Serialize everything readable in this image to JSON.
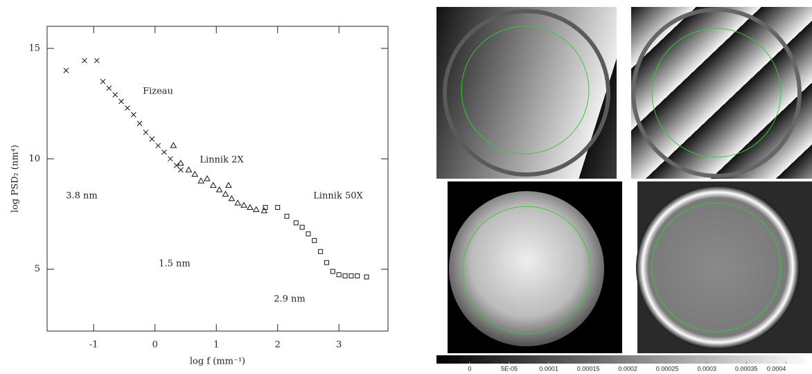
{
  "chart_data": {
    "type": "scatter",
    "xlabel": "log f (mm⁻¹)",
    "ylabel": "log PSD₂ (nm⁴)",
    "xlim": [
      -1.76,
      3.8
    ],
    "ylim": [
      2.2,
      16
    ],
    "xticks": [
      -1,
      0,
      1,
      2,
      3
    ],
    "yticks": [
      5,
      10,
      15
    ],
    "annotations": [
      "Fizeau",
      "Linnik 2X",
      "Linnik 50X",
      "3.8 nm",
      "1.5 nm",
      "2.9 nm"
    ],
    "series": [
      {
        "marker": "x",
        "color": "#111111",
        "x": [
          -1.45,
          -1.15,
          -0.95,
          -0.85,
          -0.75,
          -0.65,
          -0.55,
          -0.45,
          -0.35,
          -0.25,
          -0.15,
          -0.05,
          0.05,
          0.15,
          0.25,
          0.35,
          0.42
        ],
        "values": [
          14.0,
          14.45,
          14.45,
          13.5,
          13.2,
          12.9,
          12.6,
          12.3,
          12.0,
          11.6,
          11.2,
          10.9,
          10.6,
          10.3,
          10.0,
          9.7,
          9.5
        ]
      },
      {
        "marker": "triangle",
        "color": "#111111",
        "x": [
          0.3,
          0.42,
          0.55,
          0.65,
          0.75,
          0.85,
          0.95,
          1.05,
          1.2,
          1.15,
          1.25,
          1.35,
          1.45,
          1.55,
          1.65,
          1.78
        ],
        "values": [
          10.6,
          9.8,
          9.5,
          9.3,
          9.0,
          9.1,
          8.8,
          8.6,
          8.8,
          8.4,
          8.2,
          8.0,
          7.9,
          7.8,
          7.7,
          7.65
        ]
      },
      {
        "marker": "square",
        "color": "#111111",
        "x": [
          1.8,
          2.0,
          2.15,
          2.3,
          2.4,
          2.5,
          2.6,
          2.7,
          2.8,
          2.9,
          3.0,
          3.1,
          3.2,
          3.3,
          3.45
        ],
        "values": [
          7.8,
          7.8,
          7.4,
          7.1,
          6.9,
          6.6,
          6.3,
          5.8,
          5.3,
          4.9,
          4.75,
          4.7,
          4.7,
          4.7,
          4.65
        ]
      }
    ]
  },
  "colorbar": {
    "clim": [
      -4.2e-05,
      0.000433
    ],
    "ticks": [
      0,
      {
        "value": 5e-05,
        "label": "5E-05"
      },
      0.0001,
      0.00015,
      0.0002,
      0.00025,
      0.0003,
      0.00035,
      0.0004
    ]
  }
}
